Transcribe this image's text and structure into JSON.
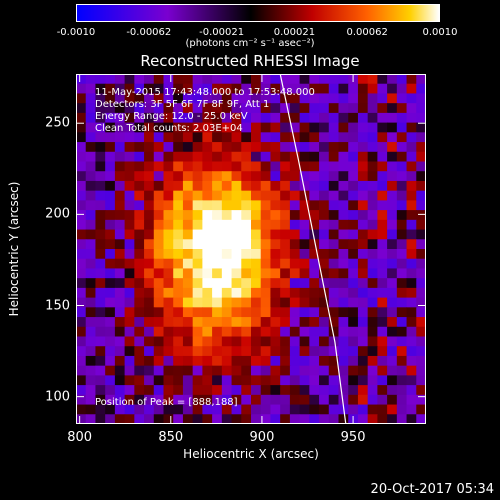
{
  "colorbar": {
    "ticks": [
      "-0.0010",
      "-0.00062",
      "-0.00021",
      "0.00021",
      "0.00062",
      "0.0010"
    ],
    "label": "(photons cm⁻² s⁻¹ asec⁻²)",
    "range": [
      -0.001,
      0.001
    ]
  },
  "annotations": {
    "time_range": "11-May-2015 17:43:48.000 to 17:53:48.000",
    "detectors": "Detectors: 3F 5F 6F 7F 8F 9F, Att 1",
    "energy_range": "Energy Range: 12.0 - 25.0 keV",
    "algorithm": "Clean     Total counts: 2.03E+04",
    "peak": "Position of Peak = [888,188]"
  },
  "timestamp": "20-Oct-2017 05:34",
  "chart_data": {
    "type": "heatmap",
    "title": "Reconstructed RHESSI Image",
    "xlabel": "Heliocentric X (arcsec)",
    "ylabel": "Heliocentric Y (arcsec)",
    "xlim": [
      798,
      990
    ],
    "ylim": [
      85,
      277
    ],
    "xticks": [
      800,
      850,
      900,
      950
    ],
    "yticks": [
      100,
      150,
      200,
      250
    ],
    "peak": {
      "x": 888,
      "y": 188
    },
    "grid": false,
    "colormap": "blue-purple-black-red-orange-yellow-white",
    "limb_arc": [
      [
        910,
        277
      ],
      [
        920,
        230
      ],
      [
        930,
        180
      ],
      [
        940,
        130
      ],
      [
        946,
        85
      ]
    ],
    "source_region": "emission blob centered near x 860-900, y 140-240"
  }
}
